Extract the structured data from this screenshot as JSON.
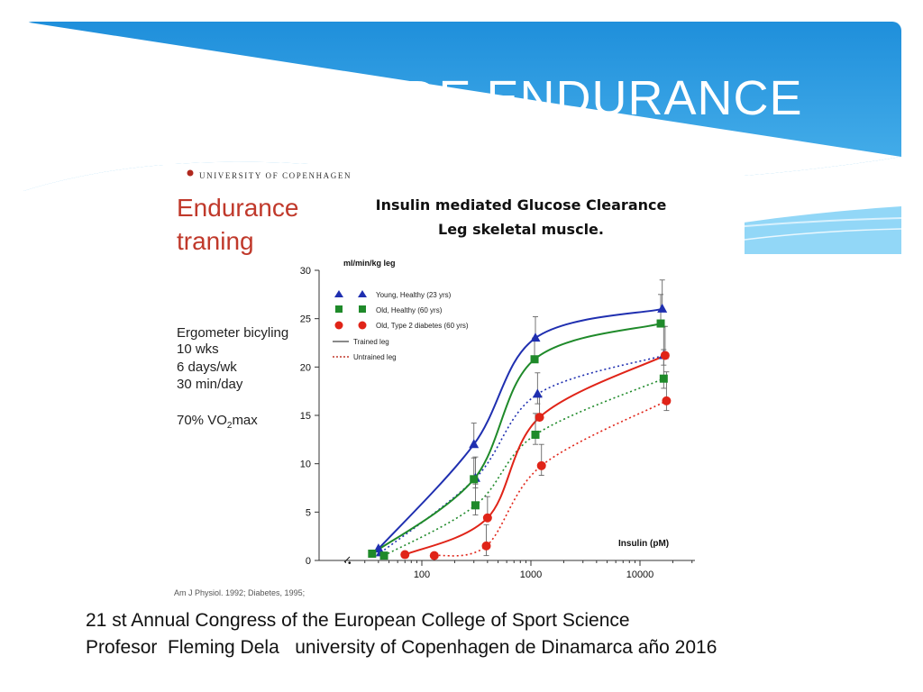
{
  "slide": {
    "title": "EJERCICIO DE ENDURANCE",
    "footer_line1": "21 st Annual Congress of the European College of Sport Science",
    "footer_line2": "Profesor  Fleming Dela   university of Copenhagen de Dinamarca año 2016"
  },
  "figure": {
    "university": "UNIVERSITY OF COPENHAGEN",
    "heading_line1": "Endurance",
    "heading_line2": "traning",
    "protocol": [
      "Ergometer bicyling",
      "10 wks",
      "6 days/wk",
      "30 min/day"
    ],
    "vo2_prefix": "70% VO",
    "vo2_sub": "2",
    "vo2_suffix": "max",
    "citation": "Am J Physiol. 1992; Diabetes, 1995;"
  },
  "colors": {
    "header_blue": "#2596df",
    "young": "#1f2fb0",
    "old_healthy": "#1f8a2a",
    "diabetes": "#e02418",
    "red_heading": "#c0392b"
  },
  "chart_data": {
    "type": "line",
    "title_line1": "Insulin mediated Glucose Clearance",
    "title_line2": "Leg skeletal muscle.",
    "ylabel": "ml/min/kg leg",
    "xlabel": "Insulin (pM)",
    "x_scale": "log",
    "ylim": [
      0,
      30
    ],
    "yticks": [
      "0",
      "5",
      "10",
      "15",
      "20",
      "25",
      "30"
    ],
    "xticks": [
      "100",
      "1000",
      "10000"
    ],
    "legend_position": "top-left",
    "legend": {
      "young": "Young, Healthy (23 yrs)",
      "old": "Old, Healthy (60 yrs)",
      "t2d": "Old, Type 2 diabetes (60 yrs)",
      "trained": "Trained leg",
      "untrained": "Untrained leg"
    },
    "series": [
      {
        "group": "young",
        "marker": "triangle",
        "leg": "trained",
        "x": [
          40,
          300,
          1100,
          16000
        ],
        "y": [
          1.2,
          12,
          23,
          26
        ]
      },
      {
        "group": "young",
        "marker": "triangle",
        "leg": "untrained",
        "x": [
          42,
          310,
          1150,
          16500
        ],
        "y": [
          0.8,
          8.5,
          17.2,
          21.2
        ]
      },
      {
        "group": "old",
        "marker": "square",
        "leg": "trained",
        "x": [
          35,
          300,
          1080,
          15500
        ],
        "y": [
          0.7,
          8.4,
          20.8,
          24.5
        ]
      },
      {
        "group": "old",
        "marker": "square",
        "leg": "untrained",
        "x": [
          45,
          310,
          1100,
          16500
        ],
        "y": [
          0.5,
          5.7,
          13,
          18.8
        ]
      },
      {
        "group": "t2d",
        "marker": "circle",
        "leg": "trained",
        "x": [
          70,
          400,
          1200,
          17000
        ],
        "y": [
          0.6,
          4.4,
          14.8,
          21.2
        ]
      },
      {
        "group": "t2d",
        "marker": "circle",
        "leg": "untrained",
        "x": [
          130,
          390,
          1250,
          17500
        ],
        "y": [
          0.5,
          1.5,
          9.8,
          16.5
        ]
      }
    ]
  }
}
